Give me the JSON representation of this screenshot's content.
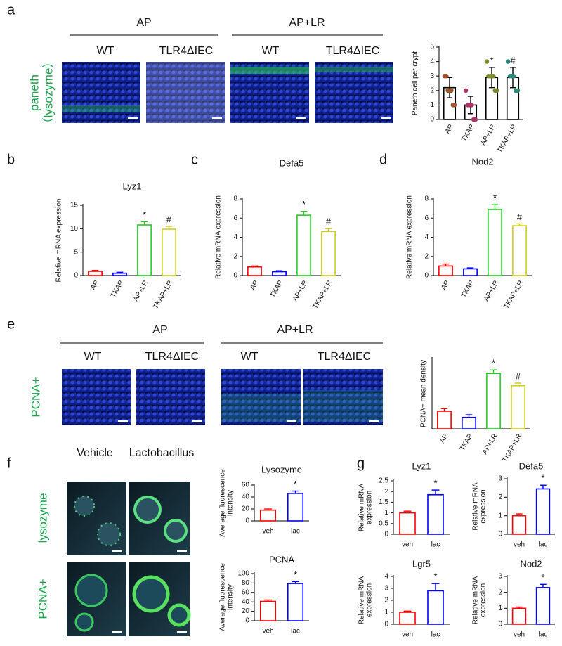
{
  "panel_labels": [
    "a",
    "b",
    "c",
    "d",
    "e",
    "f",
    "g"
  ],
  "images": {
    "a": {
      "groups": [
        "AP",
        "AP+LR"
      ],
      "columns": [
        "WT",
        "TLR4ΔIEC",
        "WT",
        "TLR4ΔIEC"
      ],
      "row_label": [
        "paneth",
        "（lysozyme）"
      ]
    },
    "e": {
      "groups": [
        "AP",
        "AP+LR"
      ],
      "columns": [
        "WT",
        "TLR4ΔIEC",
        "WT",
        "TLR4ΔIEC"
      ],
      "row_label": "PCNA+"
    },
    "f": {
      "columns": [
        "Vehicle",
        "Lactobacillus"
      ],
      "rows": [
        "lysozyme",
        "PCNA+"
      ]
    }
  },
  "chart_data": [
    {
      "type": "bar",
      "ylabel": "Paneth cell  per crypt",
      "categories": [
        "AP",
        "TKAP",
        "AP+LR",
        "TKAP+LR"
      ],
      "values": [
        2.2,
        1.0,
        2.9,
        2.9
      ],
      "errors": [
        0.7,
        0.6,
        0.7,
        0.7
      ],
      "colors": [
        "#000000",
        "#000000",
        "#000000",
        "#000000"
      ],
      "points": [
        [
          3,
          3,
          2,
          2,
          2,
          1,
          1
        ],
        [
          2,
          1,
          1,
          1,
          0,
          0
        ],
        [
          4,
          3,
          3,
          3,
          3,
          2,
          2
        ],
        [
          4,
          3,
          3,
          3,
          2,
          2
        ]
      ],
      "point_colors": [
        "#a0522d",
        "#b0306a",
        "#7a8a2a",
        "#2a8a7a"
      ],
      "annotations": [
        null,
        null,
        "*",
        "#"
      ],
      "ylim": [
        0,
        5
      ],
      "yticks": [
        0,
        1,
        2,
        3,
        4,
        5
      ]
    },
    {
      "type": "bar",
      "title": "Lyz1",
      "ylabel": "Relative mRNA expression",
      "categories": [
        "AP",
        "TKAP",
        "AP+LR",
        "TKAP+LR"
      ],
      "values": [
        0.9,
        0.5,
        10.8,
        9.9
      ],
      "errors": [
        0.2,
        0.2,
        0.7,
        0.6
      ],
      "colors": [
        "#ff0000",
        "#0000ff",
        "#22cc22",
        "#cccc22"
      ],
      "annotations": [
        null,
        null,
        "*",
        "#"
      ],
      "ylim": [
        0,
        15
      ],
      "yticks": [
        0,
        5,
        10,
        15
      ]
    },
    {
      "type": "bar",
      "title": "Defa5",
      "ylabel": "Relative mRNA expression",
      "categories": [
        "AP",
        "TKAP",
        "AP+LR",
        "TKAP+LR"
      ],
      "values": [
        0.9,
        0.4,
        6.3,
        4.6
      ],
      "errors": [
        0.1,
        0.1,
        0.4,
        0.3
      ],
      "colors": [
        "#ff0000",
        "#0000ff",
        "#22cc22",
        "#cccc22"
      ],
      "annotations": [
        null,
        null,
        "*",
        "#"
      ],
      "ylim": [
        0,
        8
      ],
      "yticks": [
        0,
        2,
        4,
        6,
        8
      ]
    },
    {
      "type": "bar",
      "title": "Nod2",
      "ylabel": "Relative mRNA expression",
      "categories": [
        "AP",
        "TKAP",
        "AP+LR",
        "TKAP+LR"
      ],
      "values": [
        1.0,
        0.7,
        6.9,
        5.2
      ],
      "errors": [
        0.2,
        0.1,
        0.5,
        0.2
      ],
      "colors": [
        "#ff0000",
        "#0000ff",
        "#22cc22",
        "#cccc22"
      ],
      "annotations": [
        null,
        null,
        "*",
        "#"
      ],
      "ylim": [
        0,
        8
      ],
      "yticks": [
        0,
        2,
        4,
        6,
        8
      ]
    },
    {
      "type": "bar",
      "ylabel": "PCNA+ mean density",
      "categories": [
        "AP",
        "TKAP",
        "AP+LR",
        "TKAP+LR"
      ],
      "values": [
        2.0,
        1.3,
        6.3,
        4.9
      ],
      "errors": [
        0.3,
        0.3,
        0.4,
        0.3
      ],
      "colors": [
        "#ff0000",
        "#0000ff",
        "#22cc22",
        "#cccc22"
      ],
      "annotations": [
        null,
        null,
        "*",
        "#"
      ],
      "ylim": [
        0,
        8
      ]
    },
    {
      "type": "bar",
      "title": "Lysozyme",
      "ylabel": [
        "Average fluorescence",
        "intensity"
      ],
      "categories": [
        "veh",
        "lac"
      ],
      "values": [
        18,
        46
      ],
      "errors": [
        2,
        4
      ],
      "colors": [
        "#ff0000",
        "#0000ff"
      ],
      "annotations": [
        null,
        "*"
      ],
      "ylim": [
        0,
        60
      ],
      "yticks": [
        0,
        20,
        40,
        60
      ]
    },
    {
      "type": "bar",
      "title": "PCNA",
      "ylabel": [
        "Average fluorescence",
        "intensity"
      ],
      "categories": [
        "veh",
        "lac"
      ],
      "values": [
        41,
        79
      ],
      "errors": [
        3,
        4
      ],
      "colors": [
        "#ff0000",
        "#0000ff"
      ],
      "annotations": [
        null,
        "*"
      ],
      "ylim": [
        0,
        100
      ],
      "yticks": [
        0,
        20,
        40,
        60,
        80,
        100
      ]
    },
    {
      "type": "bar",
      "title": "Lyz1",
      "ylabel": [
        "Relative mRNA",
        "expression"
      ],
      "categories": [
        "veh",
        "lac"
      ],
      "values": [
        1.0,
        1.85
      ],
      "errors": [
        0.08,
        0.22
      ],
      "colors": [
        "#ff0000",
        "#0000ff"
      ],
      "annotations": [
        null,
        "*"
      ],
      "ylim": [
        0,
        2.5
      ],
      "yticks": [
        0,
        0.5,
        1,
        1.5,
        2,
        2.5
      ]
    },
    {
      "type": "bar",
      "title": "Defa5",
      "ylabel": [
        "Relative mRNA",
        "expression"
      ],
      "categories": [
        "veh",
        "lac"
      ],
      "values": [
        1.0,
        2.45
      ],
      "errors": [
        0.1,
        0.2
      ],
      "colors": [
        "#ff0000",
        "#0000ff"
      ],
      "annotations": [
        null,
        "*"
      ],
      "ylim": [
        0,
        3
      ],
      "yticks": [
        0,
        1,
        2,
        3
      ]
    },
    {
      "type": "bar",
      "title": "Lgr5",
      "ylabel": [
        "Relative mRNA",
        "expression"
      ],
      "categories": [
        "veh",
        "lac"
      ],
      "values": [
        1.0,
        2.8
      ],
      "errors": [
        0.1,
        0.6
      ],
      "colors": [
        "#ff0000",
        "#0000ff"
      ],
      "annotations": [
        null,
        "*"
      ],
      "ylim": [
        0,
        4
      ],
      "yticks": [
        0,
        1,
        2,
        3,
        4
      ]
    },
    {
      "type": "bar",
      "title": "Nod2",
      "ylabel": [
        "Relative mRNA",
        "expression"
      ],
      "categories": [
        "veh",
        "lac"
      ],
      "values": [
        1.0,
        2.3
      ],
      "errors": [
        0.08,
        0.2
      ],
      "colors": [
        "#ff0000",
        "#0000ff"
      ],
      "annotations": [
        null,
        "*"
      ],
      "ylim": [
        0,
        3
      ],
      "yticks": [
        0,
        1,
        2,
        3
      ]
    }
  ]
}
